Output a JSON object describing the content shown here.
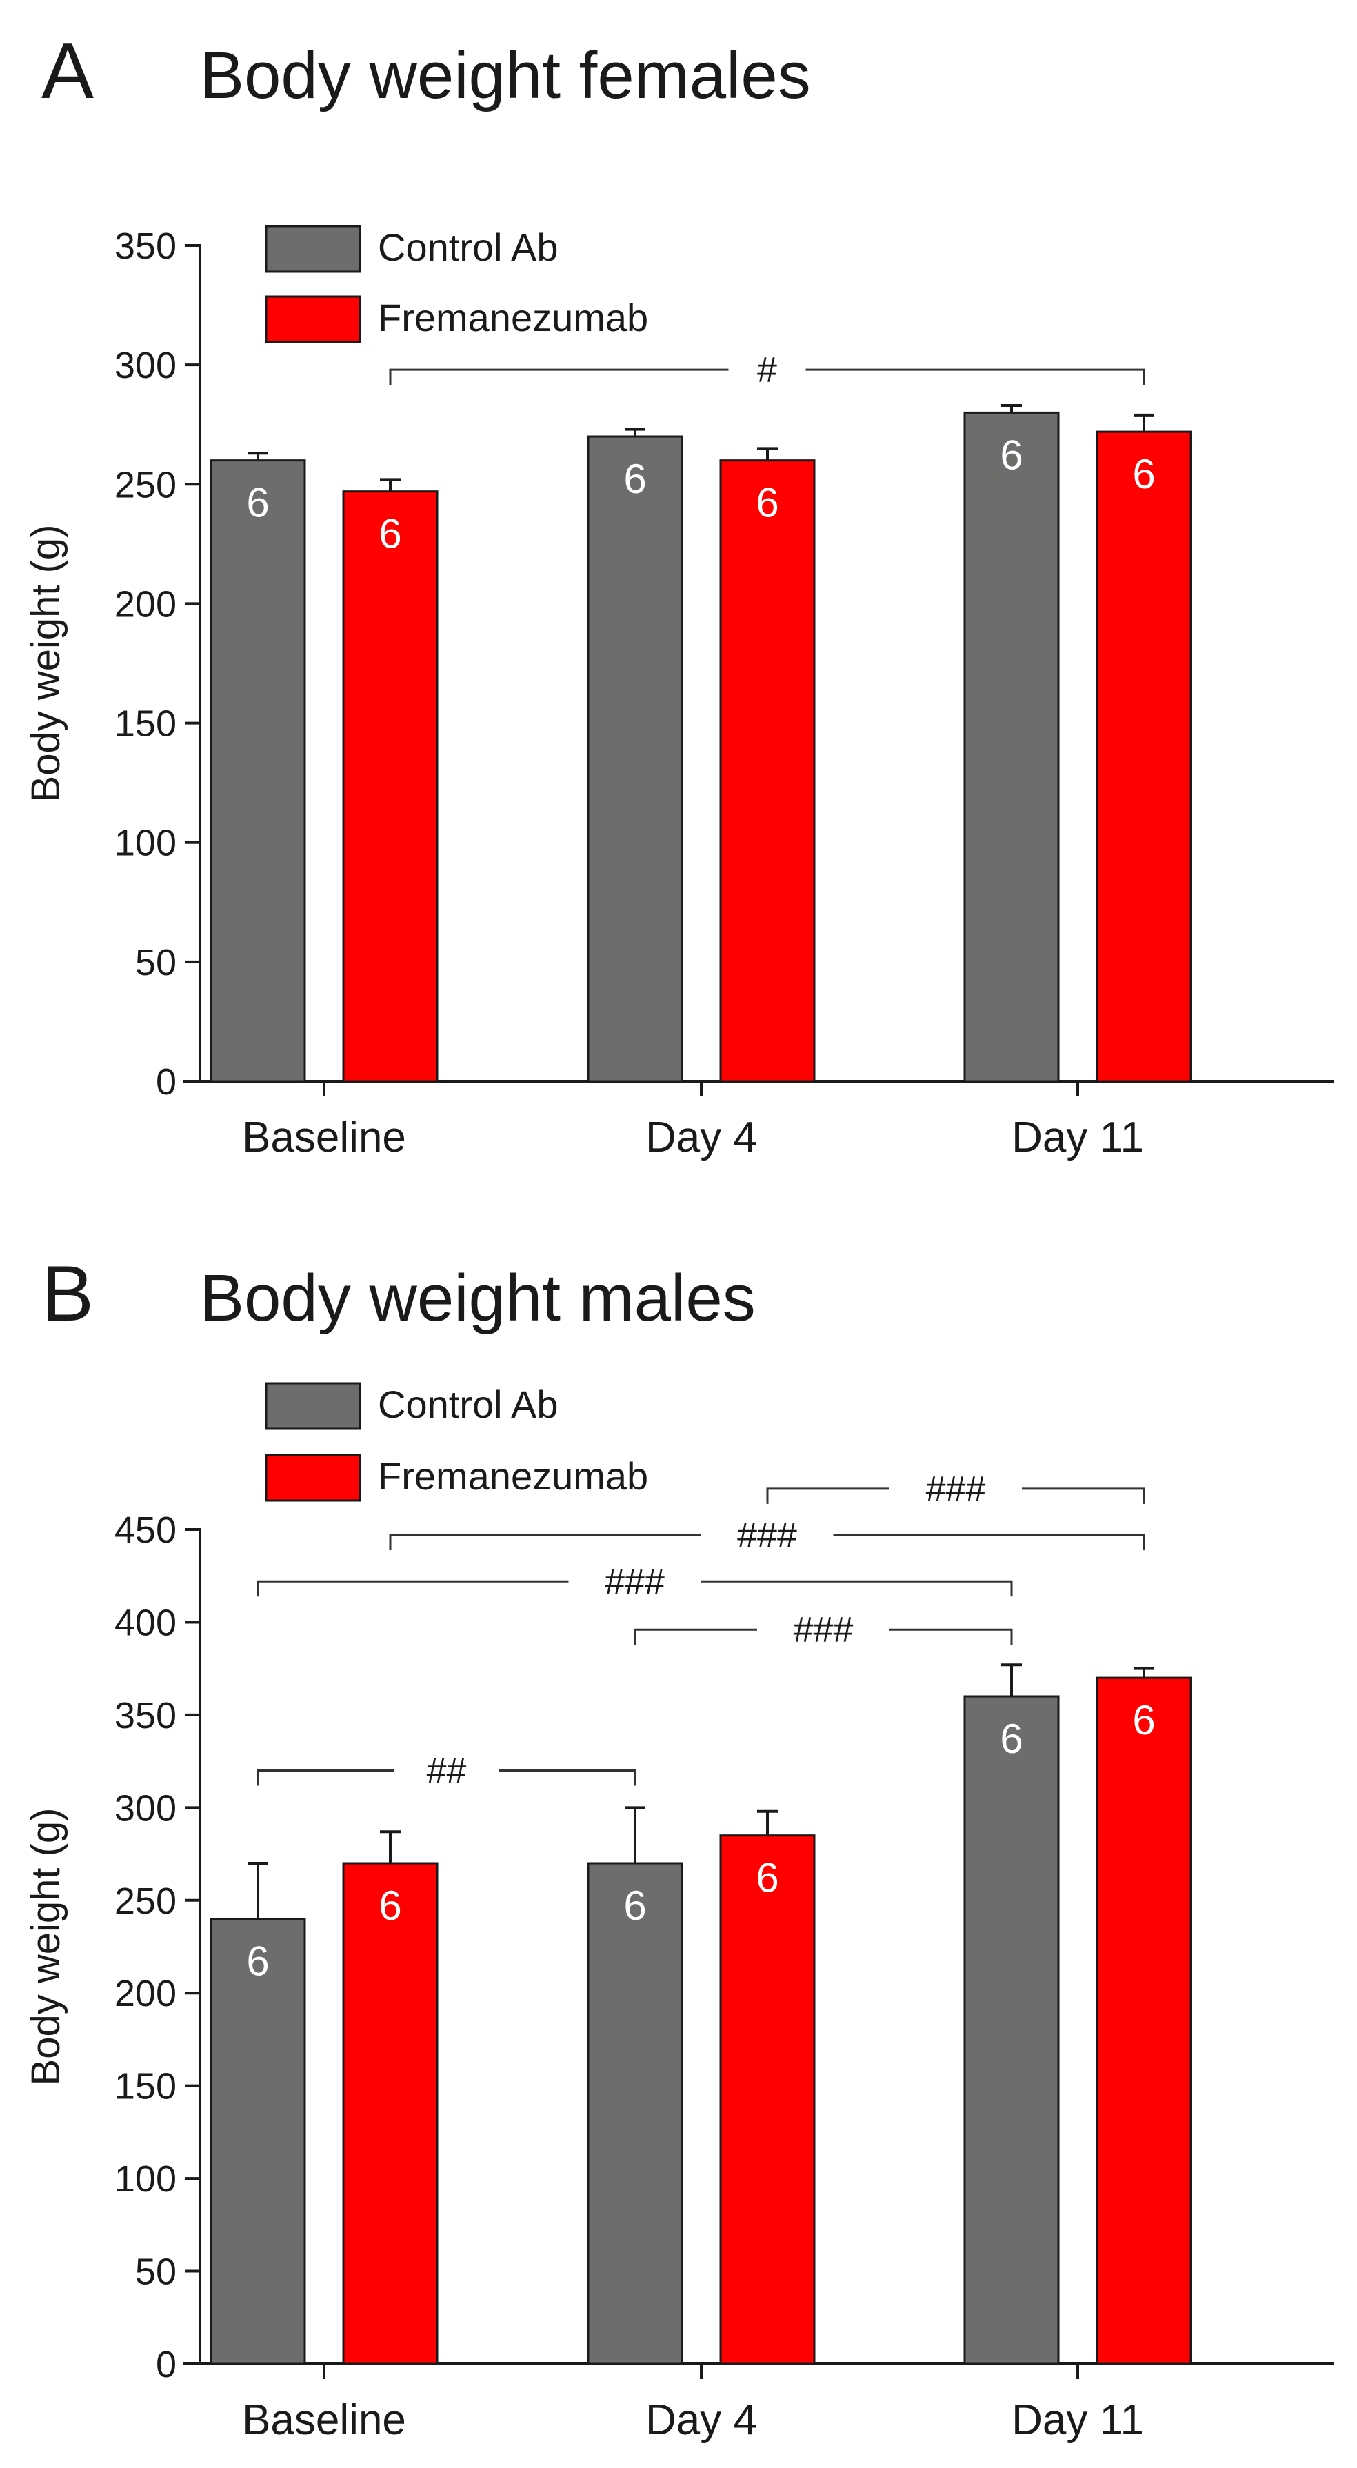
{
  "colors": {
    "control": "#6d6d6b",
    "fremanezumab": "#ff0000",
    "edge": "#1a1a1a"
  },
  "chart_data": [
    {
      "type": "bar",
      "panel": "A",
      "title": "Body weight females",
      "ylabel": "Body weight (g)",
      "xlabel": "",
      "ylim": [
        0,
        350
      ],
      "yticks": [
        "0",
        "50",
        "100",
        "150",
        "200",
        "250",
        "300",
        "350"
      ],
      "categories": [
        "Baseline",
        "Day 4",
        "Day 11"
      ],
      "legend": {
        "placement": "top-left",
        "entries": [
          "Control Ab",
          "Fremanezumab"
        ]
      },
      "series": [
        {
          "name": "Control Ab",
          "values": [
            260,
            270,
            280
          ],
          "errors": [
            3,
            3,
            3
          ],
          "n": [
            "6",
            "6",
            "6"
          ]
        },
        {
          "name": "Fremanezumab",
          "values": [
            247,
            260,
            272
          ],
          "errors": [
            5,
            5,
            7
          ],
          "n": [
            "6",
            "6",
            "6"
          ]
        }
      ],
      "significance": [
        {
          "label": "#",
          "from": [
            0,
            1
          ],
          "to": [
            2,
            1
          ],
          "y": 298
        }
      ]
    },
    {
      "type": "bar",
      "panel": "B",
      "title": "Body weight males",
      "ylabel": "Body weight (g)",
      "xlabel": "",
      "ylim": [
        0,
        450
      ],
      "yticks": [
        "0",
        "50",
        "100",
        "150",
        "200",
        "250",
        "300",
        "350",
        "400",
        "450"
      ],
      "categories": [
        "Baseline",
        "Day 4",
        "Day 11"
      ],
      "legend": {
        "placement": "top-left",
        "entries": [
          "Control Ab",
          "Fremanezumab"
        ]
      },
      "series": [
        {
          "name": "Control Ab",
          "values": [
            240,
            270,
            360
          ],
          "errors": [
            30,
            30,
            17
          ],
          "n": [
            "6",
            "6",
            "6"
          ]
        },
        {
          "name": "Fremanezumab",
          "values": [
            270,
            285,
            370
          ],
          "errors": [
            17,
            13,
            5
          ],
          "n": [
            "6",
            "6",
            "6"
          ]
        }
      ],
      "significance": [
        {
          "label": "###",
          "from": [
            1,
            1
          ],
          "to": [
            2,
            1
          ],
          "y": 472
        },
        {
          "label": "###",
          "from": [
            0,
            1
          ],
          "to": [
            2,
            1
          ],
          "y": 447
        },
        {
          "label": "###",
          "from": [
            0,
            0
          ],
          "to": [
            2,
            0
          ],
          "y": 422
        },
        {
          "label": "###",
          "from": [
            1,
            0
          ],
          "to": [
            2,
            0
          ],
          "y": 396
        },
        {
          "label": "##",
          "from": [
            0,
            0
          ],
          "to": [
            1,
            0
          ],
          "y": 320
        }
      ]
    }
  ]
}
